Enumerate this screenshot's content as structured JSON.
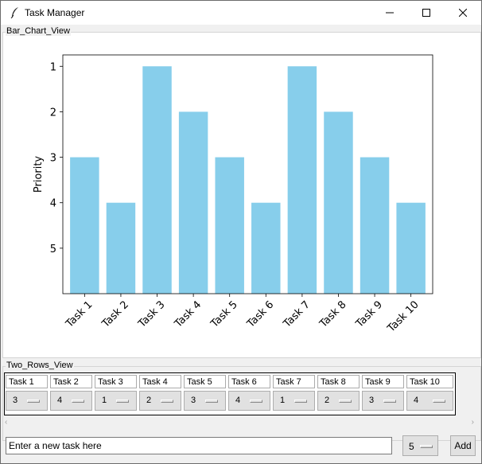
{
  "window": {
    "title": "Task Manager",
    "icon": "feather-icon",
    "controls": [
      "minimize-icon",
      "maximize-icon",
      "close-icon"
    ]
  },
  "bar_chart_view": {
    "label": "Bar_Chart_View"
  },
  "chart_data": {
    "type": "bar",
    "categories": [
      "Task 1",
      "Task 2",
      "Task 3",
      "Task 4",
      "Task 5",
      "Task 6",
      "Task 7",
      "Task 8",
      "Task 9",
      "Task 10"
    ],
    "values": [
      3,
      4,
      1,
      2,
      3,
      4,
      1,
      2,
      3,
      4
    ],
    "ylabel": "Priority",
    "yticks": [
      1,
      2,
      3,
      4,
      5
    ],
    "ylim_inverted": [
      6,
      0.75
    ],
    "bar_color": "#87ceeb",
    "grid": false
  },
  "two_rows_view": {
    "label": "Two_Rows_View",
    "tasks": [
      {
        "name": "Task 1",
        "priority": "3"
      },
      {
        "name": "Task 2",
        "priority": "4"
      },
      {
        "name": "Task 3",
        "priority": "1"
      },
      {
        "name": "Task 4",
        "priority": "2"
      },
      {
        "name": "Task 5",
        "priority": "3"
      },
      {
        "name": "Task 6",
        "priority": "4"
      },
      {
        "name": "Task 7",
        "priority": "1"
      },
      {
        "name": "Task 8",
        "priority": "2"
      },
      {
        "name": "Task 9",
        "priority": "3"
      },
      {
        "name": "Task 10",
        "priority": "4"
      }
    ]
  },
  "new_task": {
    "value": "Enter a new task here",
    "priority": "5",
    "add_label": "Add"
  }
}
